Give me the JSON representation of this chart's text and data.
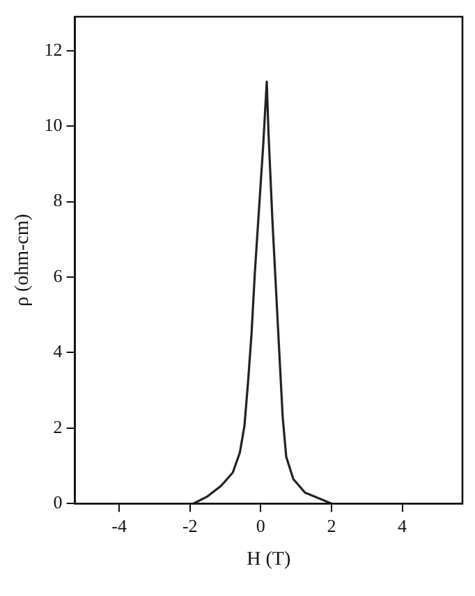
{
  "chart_data": {
    "type": "line",
    "xlabel": "H (T)",
    "ylabel": "ρ (ohm-cm)",
    "x": [
      -1.9,
      -1.52,
      -1.12,
      -0.79,
      -0.59,
      -0.46,
      -0.36,
      -0.26,
      -0.17,
      -0.07,
      0.07,
      0.17,
      0.22,
      0.33,
      0.43,
      0.53,
      0.62,
      0.72,
      0.92,
      1.25,
      2.0
    ],
    "series": [
      {
        "color": "#222222",
        "values": [
          0,
          0.18,
          0.47,
          0.82,
          1.35,
          2.06,
          3.2,
          4.5,
          6.06,
          7.5,
          9.5,
          11.18,
          9.8,
          7.5,
          5.7,
          3.9,
          2.3,
          1.24,
          0.65,
          0.29,
          0
        ]
      }
    ],
    "xlim": [
      -5.25,
      5.7
    ],
    "xticks": [
      -4,
      -2,
      0,
      2,
      4
    ],
    "ylim": [
      0,
      12.9
    ],
    "yticks": [
      0,
      2,
      4,
      6,
      8,
      10,
      12
    ],
    "grid": false,
    "legend": false,
    "marker": "none",
    "line_style": "solid"
  }
}
